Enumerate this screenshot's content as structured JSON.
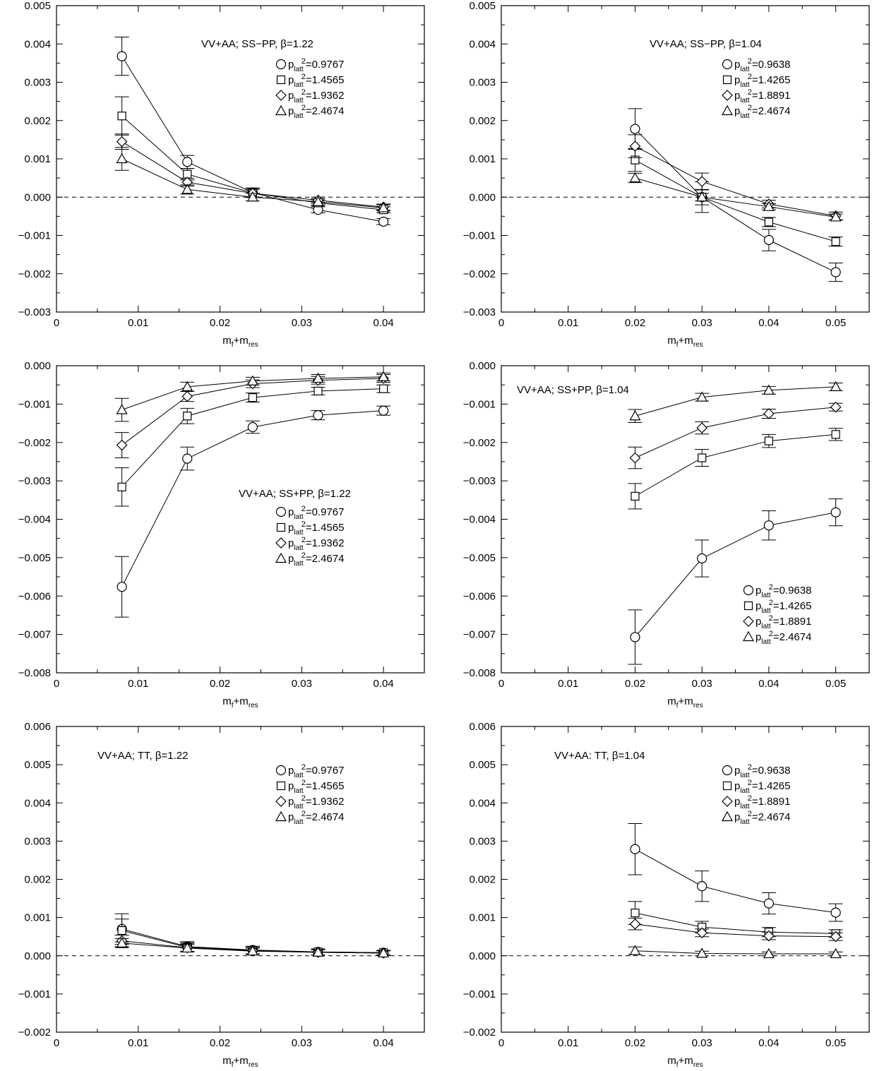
{
  "chart_data": [
    {
      "type": "line",
      "annotation": "VV+AA; SS−PP, β=1.22",
      "xlabel": "m_f+m_res",
      "xlim": [
        0,
        0.045
      ],
      "ylim": [
        -0.003,
        0.005
      ],
      "xticks": [
        0,
        0.01,
        0.02,
        0.03,
        0.04
      ],
      "xtick_labels": [
        "0",
        "0.01",
        "0.02",
        "0.03",
        "0.04"
      ],
      "yticks": [
        -0.003,
        -0.002,
        -0.001,
        0,
        0.001,
        0.002,
        0.003,
        0.004,
        0.005
      ],
      "ytick_labels": [
        "−0.003",
        "−0.002",
        "−0.001",
        "0.000",
        "0.001",
        "0.002",
        "0.003",
        "0.004",
        "0.005"
      ],
      "zero_line": true,
      "legend_position": "top-right",
      "x": [
        0.008,
        0.016,
        0.024,
        0.032,
        0.04
      ],
      "series": [
        {
          "name": "p_latt^2=0.9767",
          "marker": "circle",
          "values": [
            0.00368,
            0.00092,
            0.00012,
            -0.00033,
            -0.00064
          ],
          "errors": [
            0.0005,
            0.00017,
            0.00012,
            8e-05,
            8e-05
          ]
        },
        {
          "name": "p_latt^2=1.4565",
          "marker": "square",
          "values": [
            0.00212,
            0.0006,
            0.00011,
            -0.00015,
            -0.00033
          ],
          "errors": [
            0.0005,
            0.00015,
            0.00012,
            8e-05,
            8e-05
          ]
        },
        {
          "name": "p_latt^2=1.9362",
          "marker": "diamond",
          "values": [
            0.00145,
            0.00039,
            0.0001,
            -8e-05,
            -0.00026
          ],
          "errors": [
            0.0002,
            0.0001,
            0.0001,
            8e-05,
            8e-05
          ]
        },
        {
          "name": "p_latt^2=2.4674",
          "marker": "triangle",
          "values": [
            0.001,
            0.0002,
            0.0,
            -0.00012,
            -0.00028
          ],
          "errors": [
            0.0003,
            0.00012,
            0.0001,
            8e-05,
            8e-05
          ]
        }
      ]
    },
    {
      "type": "line",
      "annotation": "VV+AA; SS−PP,  β=1.04",
      "xlabel": "m_f+m_res",
      "xlim": [
        0,
        0.055
      ],
      "ylim": [
        -0.003,
        0.005
      ],
      "xticks": [
        0,
        0.01,
        0.02,
        0.03,
        0.04,
        0.05
      ],
      "xtick_labels": [
        "0",
        "0.01",
        "0.02",
        "0.03",
        "0.04",
        "0.05"
      ],
      "yticks": [
        -0.003,
        -0.002,
        -0.001,
        0,
        0.001,
        0.002,
        0.003,
        0.004,
        0.005
      ],
      "ytick_labels": [
        "−0.003",
        "−0.002",
        "−0.001",
        "0.000",
        "0.001",
        "0.002",
        "0.003",
        "0.004",
        "0.005"
      ],
      "zero_line": true,
      "legend_position": "top-right",
      "x": [
        0.02,
        0.03,
        0.04,
        0.05
      ],
      "series": [
        {
          "name": "p_latt^2=0.9638",
          "marker": "circle",
          "values": [
            0.00178,
            0.0,
            -0.00112,
            -0.00196
          ],
          "errors": [
            0.00053,
            0.0004,
            0.00028,
            0.00024
          ]
        },
        {
          "name": "p_latt^2=1.4265",
          "marker": "square",
          "values": [
            0.00097,
            0.0,
            -0.00065,
            -0.00116
          ],
          "errors": [
            0.0003,
            0.0002,
            0.00012,
            0.00012
          ]
        },
        {
          "name": "p_latt^2=1.8891",
          "marker": "diamond",
          "values": [
            0.00133,
            0.00041,
            -0.00018,
            -0.00049
          ],
          "errors": [
            0.0003,
            0.00022,
            0.0001,
            0.0001
          ]
        },
        {
          "name": "p_latt^2=2.4674",
          "marker": "triangle",
          "values": [
            0.0005,
            0.0,
            -0.00025,
            -0.00052
          ],
          "errors": [
            0.00012,
            0.0001,
            8e-05,
            8e-05
          ]
        }
      ]
    },
    {
      "type": "line",
      "annotation": "VV+AA; SS+PP, β=1.22",
      "xlabel": "m_f+m_res",
      "xlim": [
        0,
        0.045
      ],
      "ylim": [
        -0.008,
        0.0
      ],
      "xticks": [
        0,
        0.01,
        0.02,
        0.03,
        0.04
      ],
      "xtick_labels": [
        "0",
        "0.01",
        "0.02",
        "0.03",
        "0.04"
      ],
      "yticks": [
        -0.008,
        -0.007,
        -0.006,
        -0.005,
        -0.004,
        -0.003,
        -0.002,
        -0.001,
        0
      ],
      "ytick_labels": [
        "−0.008",
        "−0.007",
        "−0.006",
        "−0.005",
        "−0.004",
        "−0.003",
        "−0.002",
        "−0.001",
        "0.000"
      ],
      "zero_line": false,
      "legend_position": "center-right",
      "x": [
        0.008,
        0.016,
        0.024,
        0.032,
        0.04
      ],
      "series": [
        {
          "name": "p_latt^2=0.9767",
          "marker": "circle",
          "values": [
            -0.00576,
            -0.00242,
            -0.0016,
            -0.00129,
            -0.00117
          ],
          "errors": [
            0.00079,
            0.0003,
            0.00016,
            0.00012,
            0.00012
          ]
        },
        {
          "name": "p_latt^2=1.4565",
          "marker": "square",
          "values": [
            -0.00316,
            -0.00131,
            -0.00083,
            -0.00066,
            -0.0006
          ],
          "errors": [
            0.0005,
            0.0002,
            0.00012,
            0.0001,
            0.0001
          ]
        },
        {
          "name": "p_latt^2=1.9362",
          "marker": "diamond",
          "values": [
            -0.00207,
            -0.0008,
            -0.00047,
            -0.00038,
            -0.00033
          ],
          "errors": [
            0.00033,
            0.00013,
            0.0001,
            0.0001,
            0.0001
          ]
        },
        {
          "name": "p_latt^2=2.4674",
          "marker": "triangle",
          "values": [
            -0.00115,
            -0.00055,
            -0.0004,
            -0.00033,
            -0.00029
          ],
          "errors": [
            0.0003,
            0.00012,
            0.0001,
            0.0001,
            0.0001
          ]
        }
      ]
    },
    {
      "type": "line",
      "annotation": "VV+AA; SS+PP, β=1.04",
      "xlabel": "m_f+m_res",
      "xlim": [
        0,
        0.055
      ],
      "ylim": [
        -0.008,
        0.0
      ],
      "xticks": [
        0,
        0.01,
        0.02,
        0.03,
        0.04,
        0.05
      ],
      "xtick_labels": [
        "0",
        "0.01",
        "0.02",
        "0.03",
        "0.04",
        "0.05"
      ],
      "yticks": [
        -0.008,
        -0.007,
        -0.006,
        -0.005,
        -0.004,
        -0.003,
        -0.002,
        -0.001,
        0
      ],
      "ytick_labels": [
        "−0.008",
        "−0.007",
        "−0.006",
        "−0.005",
        "−0.004",
        "−0.003",
        "−0.002",
        "−0.001",
        "0.000"
      ],
      "zero_line": false,
      "legend_position": "bottom-right",
      "x": [
        0.02,
        0.03,
        0.04,
        0.05
      ],
      "series": [
        {
          "name": "p_latt^2=0.9638",
          "marker": "circle",
          "values": [
            -0.00707,
            -0.00502,
            -0.00416,
            -0.00382
          ],
          "errors": [
            0.00071,
            0.00048,
            0.00038,
            0.00035
          ]
        },
        {
          "name": "p_latt^2=1.4265",
          "marker": "square",
          "values": [
            -0.0034,
            -0.0024,
            -0.00196,
            -0.00179
          ],
          "errors": [
            0.00033,
            0.00022,
            0.00017,
            0.00016
          ]
        },
        {
          "name": "p_latt^2=1.8891",
          "marker": "diamond",
          "values": [
            -0.0024,
            -0.00162,
            -0.00125,
            -0.00108
          ],
          "errors": [
            0.00028,
            0.00016,
            0.00012,
            0.0001
          ]
        },
        {
          "name": "p_latt^2=2.4674",
          "marker": "triangle",
          "values": [
            -0.00131,
            -0.00082,
            -0.00064,
            -0.00055
          ],
          "errors": [
            0.00017,
            0.0001,
            0.0001,
            0.0001
          ]
        }
      ]
    },
    {
      "type": "line",
      "annotation": "VV+AA; TT, β=1.22",
      "xlabel": "m_f+m_res",
      "xlim": [
        0,
        0.045
      ],
      "ylim": [
        -0.002,
        0.006
      ],
      "xticks": [
        0,
        0.01,
        0.02,
        0.03,
        0.04
      ],
      "xtick_labels": [
        "0",
        "0.01",
        "0.02",
        "0.03",
        "0.04"
      ],
      "yticks": [
        -0.002,
        -0.001,
        0,
        0.001,
        0.002,
        0.003,
        0.004,
        0.005,
        0.006
      ],
      "ytick_labels": [
        "−0.002",
        "−0.001",
        "0.000",
        "0.001",
        "0.002",
        "0.003",
        "0.004",
        "0.005",
        "0.006"
      ],
      "zero_line": true,
      "legend_position": "top-right",
      "x": [
        0.008,
        0.016,
        0.024,
        0.032,
        0.04
      ],
      "series": [
        {
          "name": "p_latt^2=0.9767",
          "marker": "circle",
          "values": [
            0.0007,
            0.00024,
            0.00015,
            0.0001,
            8e-05
          ],
          "errors": [
            0.0004,
            0.00013,
            0.0001,
            8e-05,
            6e-05
          ]
        },
        {
          "name": "p_latt^2=1.4565",
          "marker": "square",
          "values": [
            0.00066,
            0.00022,
            0.00014,
            0.0001,
            8e-05
          ],
          "errors": [
            0.0003,
            0.00012,
            0.0001,
            8e-05,
            6e-05
          ]
        },
        {
          "name": "p_latt^2=1.9362",
          "marker": "diamond",
          "values": [
            0.00039,
            0.00021,
            0.00013,
            9e-05,
            7e-05
          ],
          "errors": [
            0.00015,
            0.0001,
            8e-05,
            7e-05,
            6e-05
          ]
        },
        {
          "name": "p_latt^2=2.4674",
          "marker": "triangle",
          "values": [
            0.00033,
            0.0002,
            0.00012,
            9e-05,
            7e-05
          ],
          "errors": [
            0.00012,
            0.0001,
            8e-05,
            7e-05,
            6e-05
          ]
        }
      ]
    },
    {
      "type": "line",
      "annotation": "VV+AA: TT, β=1.04",
      "xlabel": "m_f+m_res",
      "xlim": [
        0,
        0.055
      ],
      "ylim": [
        -0.002,
        0.006
      ],
      "xticks": [
        0,
        0.01,
        0.02,
        0.03,
        0.04,
        0.05
      ],
      "xtick_labels": [
        "0",
        "0.01",
        "0.02",
        "0.03",
        "0.04",
        "0.05"
      ],
      "yticks": [
        -0.002,
        -0.001,
        0,
        0.001,
        0.002,
        0.003,
        0.004,
        0.005,
        0.006
      ],
      "ytick_labels": [
        "−0.002",
        "−0.001",
        "0.000",
        "0.001",
        "0.002",
        "0.003",
        "0.004",
        "0.005",
        "0.006"
      ],
      "zero_line": true,
      "legend_position": "top-right",
      "x": [
        0.02,
        0.03,
        0.04,
        0.05
      ],
      "series": [
        {
          "name": "p_latt^2=0.9638",
          "marker": "circle",
          "values": [
            0.00279,
            0.00182,
            0.00137,
            0.00113
          ],
          "errors": [
            0.00067,
            0.0004,
            0.00028,
            0.00023
          ]
        },
        {
          "name": "p_latt^2=1.4265",
          "marker": "square",
          "values": [
            0.00112,
            0.00075,
            0.00062,
            0.00058
          ],
          "errors": [
            0.0003,
            0.00015,
            0.00012,
            0.0001
          ]
        },
        {
          "name": "p_latt^2=1.8891",
          "marker": "diamond",
          "values": [
            0.00083,
            0.0006,
            0.00052,
            0.0005
          ],
          "errors": [
            0.00015,
            0.0001,
            0.0001,
            0.0001
          ]
        },
        {
          "name": "p_latt^2=2.4674",
          "marker": "triangle",
          "values": [
            0.00013,
            6e-05,
            5e-05,
            5e-05
          ],
          "errors": [
            0.0001,
            6e-05,
            5e-05,
            5e-05
          ]
        }
      ]
    }
  ]
}
